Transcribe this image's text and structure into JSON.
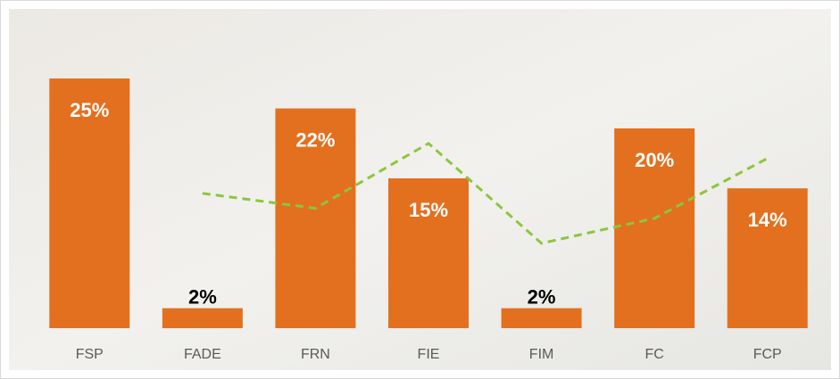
{
  "chart_data": {
    "type": "bar",
    "categories": [
      "FSP",
      "FADE",
      "FRN",
      "FIE",
      "FIM",
      "FC",
      "FCP"
    ],
    "series": [
      {
        "type": "bar",
        "color": "#e3701f",
        "values": [
          25,
          2,
          22,
          15,
          2,
          20,
          14
        ],
        "value_labels": [
          "25%",
          "2%",
          "22%",
          "15%",
          "2%",
          "20%",
          "14%"
        ]
      },
      {
        "type": "line",
        "color": "#8cc63e",
        "dashed": true,
        "values": [
          null,
          13.5,
          12,
          18.5,
          8.5,
          11,
          17
        ]
      }
    ],
    "ylim": [
      0,
      25
    ]
  }
}
